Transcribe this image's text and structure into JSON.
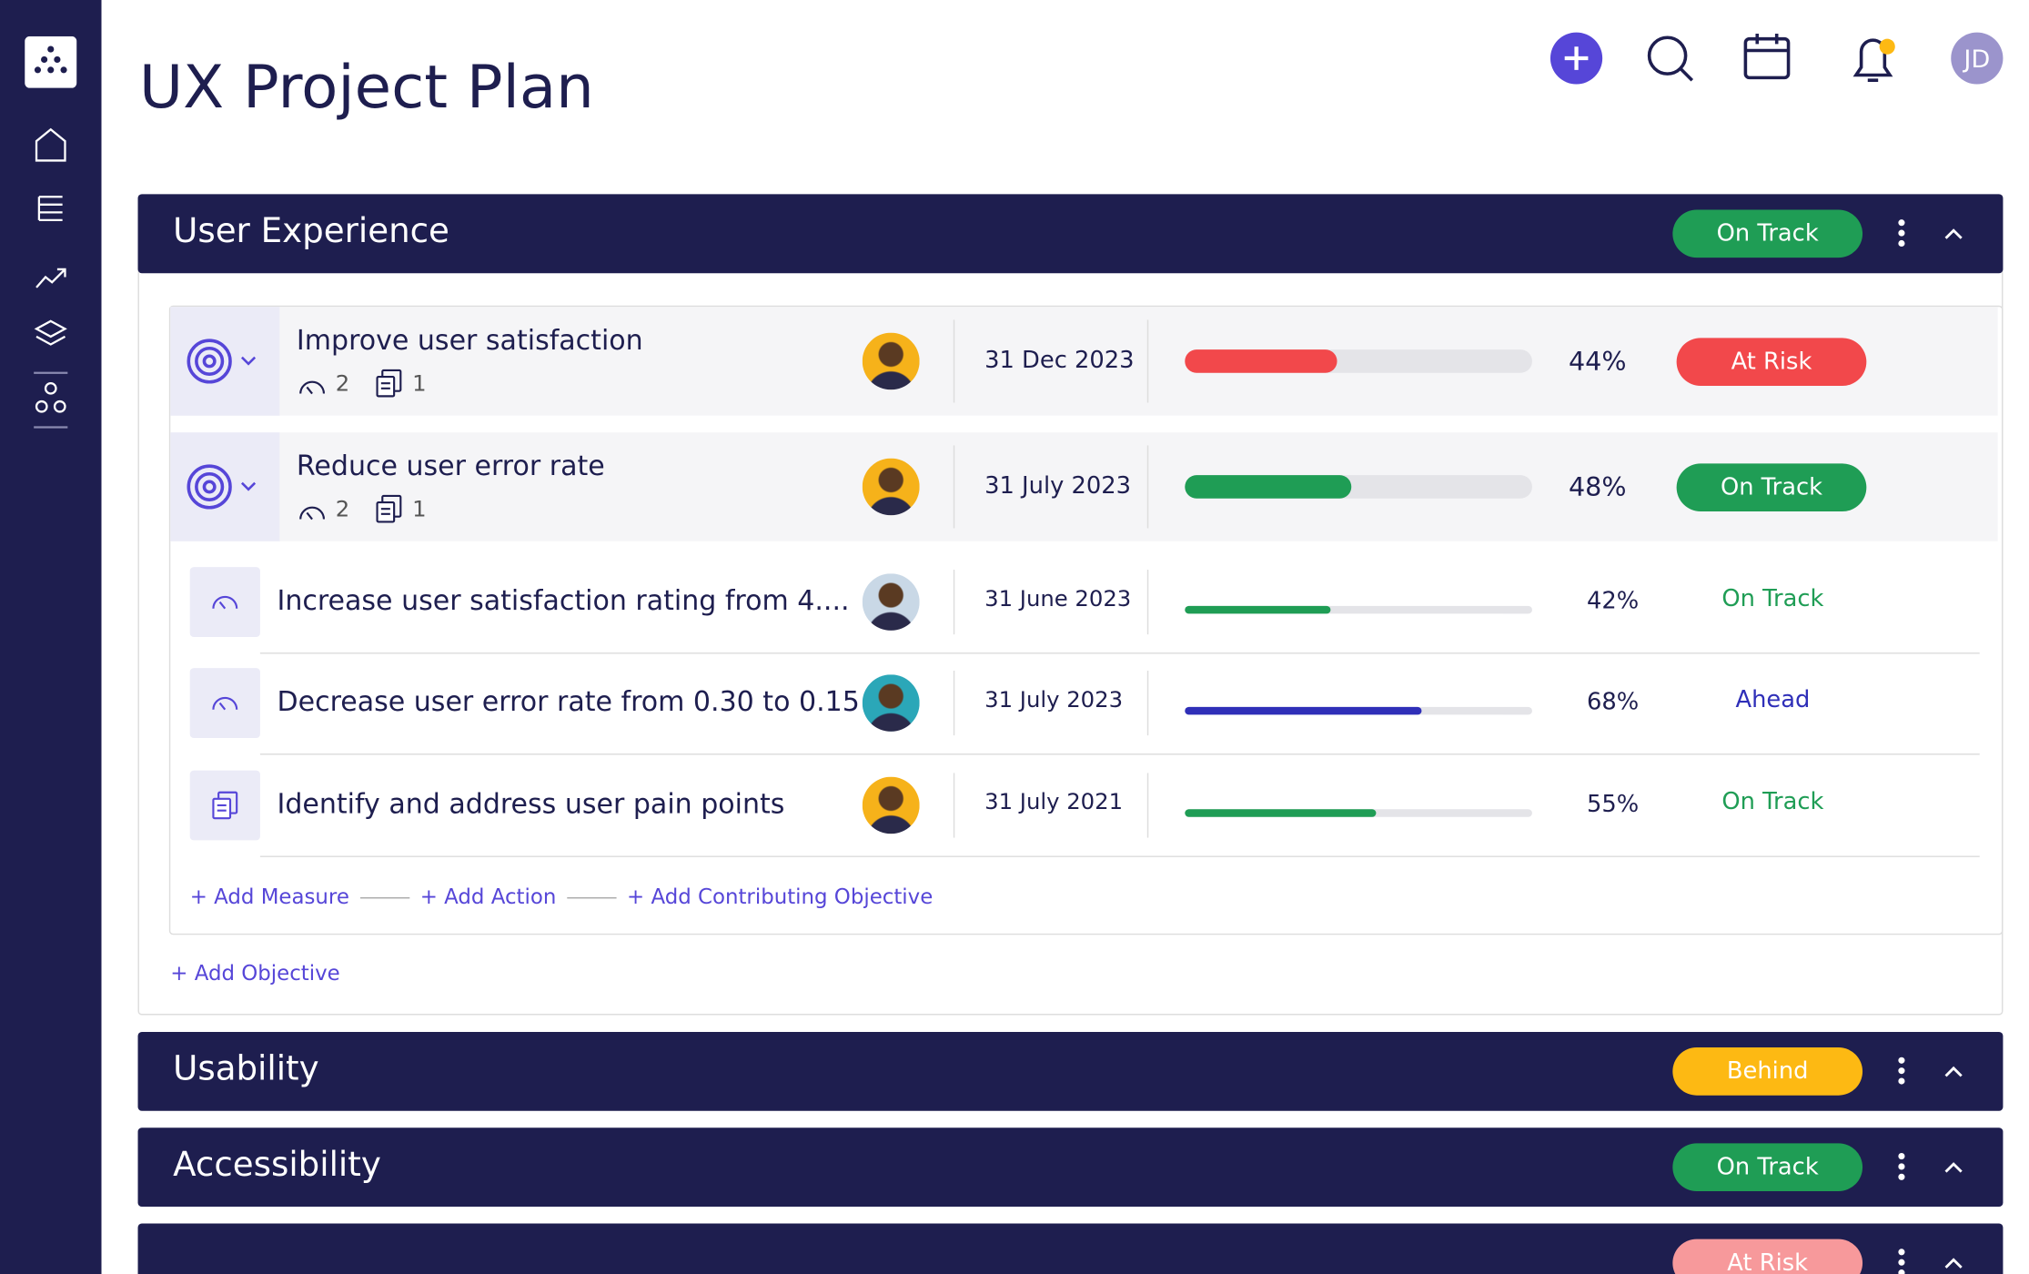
{
  "header": {
    "title": "UX Project Plan",
    "avatar": "JD"
  },
  "sections": [
    {
      "title": "User Experience",
      "status": "On Track",
      "status_color": "#1f9d55",
      "objectives": [
        {
          "title": "Improve user satisfaction",
          "measures": 2,
          "actions": 1,
          "date": "31 Dec 2023",
          "progress": 44,
          "progress_label": "44%",
          "status": "At Risk",
          "status_color": "#f2484b"
        },
        {
          "title": "Reduce user error rate",
          "measures": 2,
          "actions": 1,
          "date": "31 July 2023",
          "progress": 48,
          "progress_label": "48%",
          "status": "On Track",
          "status_color": "#1f9d55"
        }
      ],
      "items": [
        {
          "kind": "measure",
          "title": "Increase user satisfaction rating from 4....",
          "date": "31 June 2023",
          "progress": 42,
          "progress_label": "42%",
          "status": "On Track",
          "status_color": "#1f9d55"
        },
        {
          "kind": "measure",
          "title": "Decrease user error rate from 0.30 to 0.15",
          "date": "31 July 2023",
          "progress": 68,
          "progress_label": "68%",
          "status": "Ahead",
          "status_color": "#2f2fb8"
        },
        {
          "kind": "action",
          "title": "Identify and address user pain points",
          "date": "31 July 2021",
          "progress": 55,
          "progress_label": "55%",
          "status": "On Track",
          "status_color": "#1f9d55"
        }
      ],
      "links": [
        "+ Add Measure",
        "+ Add Action",
        "+ Add Contributing Objective"
      ],
      "add_objective": "+ Add Objective"
    },
    {
      "title": "Usability",
      "status": "Behind",
      "status_color": "#fdb913"
    },
    {
      "title": "Accessibility",
      "status": "On Track",
      "status_color": "#1f9d55"
    },
    {
      "status": "At Risk",
      "status_color": "#f7999b"
    }
  ]
}
